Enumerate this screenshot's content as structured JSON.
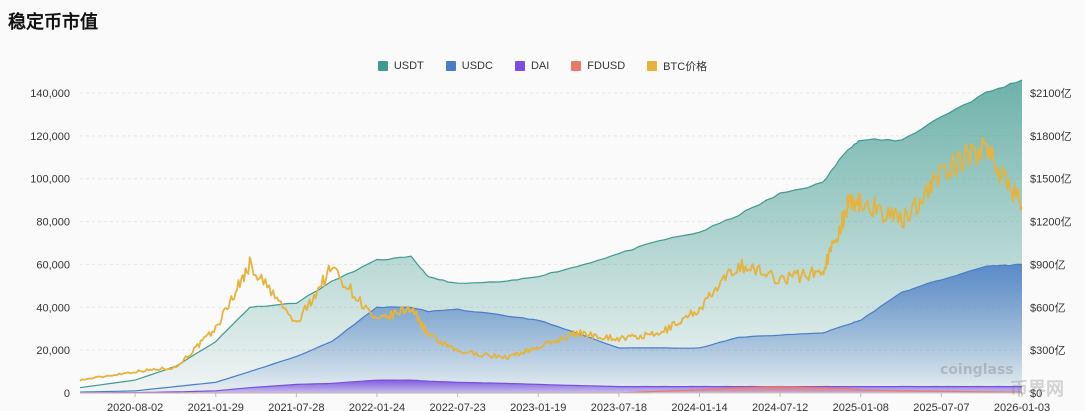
{
  "header": {
    "title": "稳定币市值"
  },
  "watermarks": {
    "brand": "coinglass",
    "brand_cn": "币界网"
  },
  "chart_data": {
    "type": "area",
    "title": "稳定币市值",
    "xlabel": "",
    "ylabel": "",
    "legend_position": "top-center",
    "grid": true,
    "x_ticks": [
      "2020-08-02",
      "2021-01-29",
      "2021-07-28",
      "2022-01-24",
      "2022-07-23",
      "2023-01-19",
      "2023-07-18",
      "2024-01-14",
      "2024-07-12",
      "2025-01-08",
      "2025-07-07",
      "2026-01-03"
    ],
    "y_left_ticks": [
      "0",
      "20,000",
      "40,000",
      "60,000",
      "80,000",
      "100,000",
      "120,000",
      "140,000"
    ],
    "y_left_range": [
      0,
      140000
    ],
    "y_right_ticks": [
      "$0",
      "$300亿",
      "$600亿",
      "$900亿",
      "$1200亿",
      "$1500亿",
      "$1800亿",
      "$2100亿"
    ],
    "y_right_range": [
      0,
      2100
    ],
    "x_range": [
      "2020-04-01",
      "2026-01-03"
    ],
    "x": [
      "2020-04-01",
      "2020-08-02",
      "2020-11-01",
      "2021-01-29",
      "2021-04-15",
      "2021-07-28",
      "2021-10-15",
      "2022-01-24",
      "2022-04-10",
      "2022-05-20",
      "2022-07-23",
      "2022-11-10",
      "2023-01-19",
      "2023-04-15",
      "2023-07-18",
      "2023-10-15",
      "2024-01-14",
      "2024-04-10",
      "2024-07-12",
      "2024-10-15",
      "2024-12-10",
      "2025-01-08",
      "2025-04-10",
      "2025-07-07",
      "2025-10-15",
      "2026-01-03"
    ],
    "series": [
      {
        "name": "USDT",
        "color": "#3f9a8f",
        "values": [
          2500,
          6000,
          12500,
          24000,
          40000,
          42000,
          52000,
          62000,
          63500,
          54000,
          51000,
          52000,
          54500,
          59000,
          65000,
          71000,
          75000,
          83000,
          93000,
          98000,
          114000,
          118000,
          118000,
          129000,
          140000,
          146000
        ]
      },
      {
        "name": "USDC",
        "color": "#4a7cc7",
        "values": [
          400,
          1000,
          3000,
          5000,
          10000,
          17000,
          24000,
          40000,
          40000,
          38000,
          39000,
          36000,
          34000,
          28000,
          21000,
          21000,
          21000,
          26000,
          27000,
          28000,
          32000,
          34000,
          47000,
          53000,
          59000,
          60000
        ]
      },
      {
        "name": "DAI",
        "color": "#7a4fe0",
        "values": [
          100,
          200,
          500,
          1000,
          2500,
          4000,
          4500,
          6000,
          6000,
          5500,
          5000,
          4500,
          4000,
          3500,
          3000,
          3000,
          3000,
          3000,
          3000,
          3000,
          3000,
          3000,
          3000,
          3000,
          3000,
          3000
        ]
      },
      {
        "name": "FDUSD",
        "color": "#e87a6a",
        "values": [
          0,
          0,
          0,
          0,
          0,
          0,
          0,
          0,
          0,
          0,
          0,
          0,
          0,
          0,
          0,
          800,
          1500,
          2500,
          3000,
          2500,
          2000,
          1500,
          1000,
          800,
          500,
          400
        ]
      },
      {
        "name": "BTC价格",
        "color": "#e6b33d",
        "axis": "right",
        "values": [
          90,
          150,
          180,
          450,
          900,
          480,
          880,
          500,
          600,
          400,
          290,
          250,
          320,
          420,
          380,
          410,
          590,
          900,
          800,
          850,
          1310,
          1350,
          1200,
          1540,
          1730,
          1300
        ]
      }
    ]
  }
}
